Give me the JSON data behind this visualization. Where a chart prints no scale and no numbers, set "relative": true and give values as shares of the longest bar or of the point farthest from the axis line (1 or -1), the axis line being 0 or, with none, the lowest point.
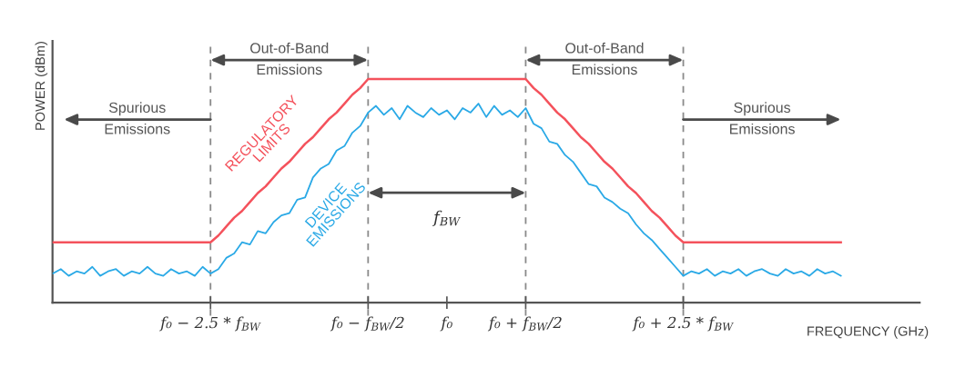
{
  "chart_data": {
    "type": "line",
    "relative": true,
    "xlabel": "FREQUENCY (GHz)",
    "ylabel": "POWER (dBm)",
    "categories": [
      null,
      null,
      null,
      null,
      null,
      null,
      null,
      null,
      null,
      null,
      null,
      null,
      null,
      null,
      null,
      null,
      null,
      null,
      null,
      null,
      "f₀ − 2.5 * f$_{BW}$",
      null,
      null,
      null,
      null,
      null,
      null,
      null,
      null,
      null,
      null,
      null,
      null,
      null,
      null,
      null,
      null,
      null,
      null,
      null,
      "f₀ − f$_{BW}$/2",
      null,
      null,
      null,
      null,
      null,
      null,
      null,
      null,
      null,
      "f₀",
      null,
      null,
      null,
      null,
      null,
      null,
      null,
      null,
      null,
      "f₀ + f$_{BW}$/2",
      null,
      null,
      null,
      null,
      null,
      null,
      null,
      null,
      null,
      null,
      null,
      null,
      null,
      null,
      null,
      null,
      null,
      null,
      null,
      "f₀ + 2.5 * f$_{BW}$",
      null,
      null,
      null,
      null,
      null,
      null,
      null,
      null,
      null,
      null,
      null,
      null,
      null,
      null,
      null,
      null,
      null,
      null,
      null,
      null
    ],
    "grid": false,
    "legend": false,
    "line_style": "solid",
    "series": [
      {
        "name": "REGULATORY\nLIMITS",
        "color": "#f4525c",
        "values": [
          0.27,
          0.27,
          0.27,
          0.27,
          0.27,
          0.27,
          0.27,
          0.27,
          0.27,
          0.27,
          0.27,
          0.27,
          0.27,
          0.27,
          0.27,
          0.27,
          0.27,
          0.27,
          0.27,
          0.27,
          0.27,
          0.3,
          0.34,
          0.38,
          0.41,
          0.45,
          0.49,
          0.52,
          0.56,
          0.6,
          0.63,
          0.67,
          0.71,
          0.74,
          0.78,
          0.82,
          0.85,
          0.89,
          0.93,
          0.96,
          1,
          1,
          1,
          1,
          1,
          1,
          1,
          1,
          1,
          1,
          1,
          1,
          1,
          1,
          1,
          1,
          1,
          1,
          1,
          1,
          1,
          0.96,
          0.93,
          0.89,
          0.85,
          0.82,
          0.78,
          0.74,
          0.71,
          0.67,
          0.63,
          0.6,
          0.56,
          0.52,
          0.49,
          0.45,
          0.41,
          0.38,
          0.34,
          0.3,
          0.27,
          0.27,
          0.27,
          0.27,
          0.27,
          0.27,
          0.27,
          0.27,
          0.27,
          0.27,
          0.27,
          0.27,
          0.27,
          0.27,
          0.27,
          0.27,
          0.27,
          0.27,
          0.27,
          0.27,
          0.27
        ]
      },
      {
        "name": "DEVICE\nEMISSIONS",
        "color": "#2aa9e6",
        "values": [
          0.13,
          0.15,
          0.12,
          0.14,
          0.13,
          0.16,
          0.12,
          0.14,
          0.15,
          0.12,
          0.14,
          0.13,
          0.16,
          0.13,
          0.12,
          0.15,
          0.13,
          0.14,
          0.12,
          0.16,
          0.13,
          0.15,
          0.2,
          0.22,
          0.27,
          0.26,
          0.32,
          0.31,
          0.36,
          0.39,
          0.4,
          0.46,
          0.47,
          0.56,
          0.6,
          0.62,
          0.68,
          0.7,
          0.76,
          0.79,
          0.85,
          0.88,
          0.84,
          0.87,
          0.82,
          0.88,
          0.85,
          0.83,
          0.87,
          0.84,
          0.86,
          0.82,
          0.87,
          0.85,
          0.89,
          0.83,
          0.88,
          0.84,
          0.86,
          0.83,
          0.87,
          0.8,
          0.78,
          0.72,
          0.71,
          0.66,
          0.63,
          0.58,
          0.53,
          0.52,
          0.47,
          0.45,
          0.42,
          0.4,
          0.35,
          0.31,
          0.28,
          0.24,
          0.2,
          0.16,
          0.12,
          0.14,
          0.13,
          0.15,
          0.12,
          0.14,
          0.13,
          0.15,
          0.12,
          0.14,
          0.15,
          0.13,
          0.12,
          0.15,
          0.13,
          0.14,
          0.12,
          0.15,
          0.13,
          0.14,
          0.12
        ]
      }
    ],
    "ref_lines": [
      {
        "axis": "x",
        "value": "f₀ − 2.5 * f$_{BW}$",
        "color": "#8a8a8a",
        "line_style": "dashed"
      },
      {
        "axis": "x",
        "value": "f₀ − f$_{BW}$/2",
        "color": "#8a8a8a",
        "line_style": "dashed"
      },
      {
        "axis": "x",
        "value": "f₀ + f$_{BW}$/2",
        "color": "#8a8a8a",
        "line_style": "dashed"
      },
      {
        "axis": "x",
        "value": "f₀ + 2.5 * f$_{BW}$",
        "color": "#8a8a8a",
        "line_style": "dashed"
      }
    ],
    "annotations": [
      "Out-of-Band\nEmissions",
      "Out-of-Band\nEmissions",
      "Spurious\nEmissions",
      "Spurious\nEmissions",
      "f$_{BW}$"
    ]
  }
}
